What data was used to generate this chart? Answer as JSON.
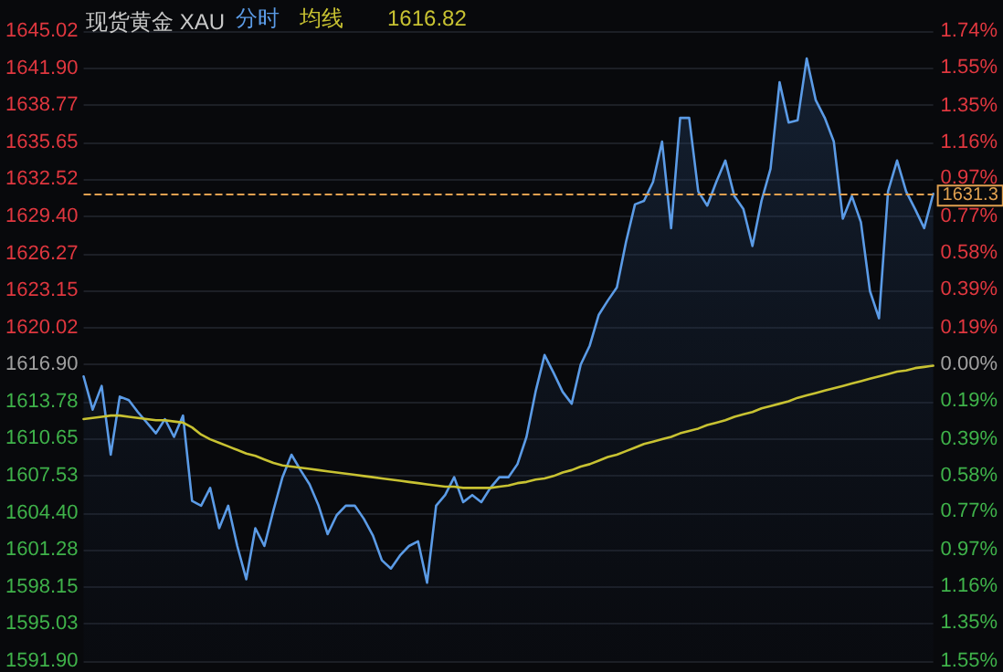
{
  "chart_data": {
    "type": "area",
    "title": "现货黄金 XAU",
    "annotations": [
      "1616.82"
    ],
    "categories": [
      null,
      null,
      null,
      null,
      null,
      null,
      null,
      null,
      null,
      null,
      null,
      null,
      null,
      null,
      null,
      null,
      null,
      null,
      null,
      null,
      null,
      null,
      null,
      null,
      null,
      null,
      null,
      null,
      null,
      null,
      null,
      null,
      null,
      null,
      null,
      null,
      null,
      null,
      null,
      null,
      null,
      null,
      null,
      null,
      null,
      null,
      null,
      null,
      null,
      null,
      null,
      null,
      null,
      null,
      null,
      null,
      null,
      null,
      null,
      null,
      null,
      null,
      null,
      null,
      null,
      null,
      null,
      null,
      null,
      null,
      null,
      null,
      null,
      null,
      null,
      null,
      null,
      null,
      null,
      null,
      null,
      null,
      null,
      null,
      null,
      null,
      null,
      null,
      null,
      null,
      null,
      null,
      null,
      null,
      null
    ],
    "series": [
      {
        "name": "分时",
        "color": "#5b9be6",
        "values": [
          1615.9,
          1613.1,
          1615.1,
          1609.3,
          1614.2,
          1613.9,
          1612.9,
          1612.0,
          1611.1,
          1612.3,
          1610.8,
          1612.6,
          1605.4,
          1605.0,
          1606.5,
          1603.1,
          1605.0,
          1601.6,
          1598.8,
          1603.1,
          1601.6,
          1604.6,
          1607.4,
          1609.3,
          1608.0,
          1606.8,
          1605.0,
          1602.6,
          1604.2,
          1605.0,
          1605.0,
          1603.9,
          1602.5,
          1600.4,
          1599.7,
          1600.8,
          1601.6,
          1602.0,
          1598.5,
          1605.0,
          1605.9,
          1607.4,
          1605.3,
          1605.9,
          1605.3,
          1606.5,
          1607.4,
          1607.4,
          1608.5,
          1610.8,
          1614.6,
          1617.7,
          1616.2,
          1614.6,
          1613.6,
          1616.9,
          1618.5,
          1621.1,
          1622.3,
          1623.4,
          1627.2,
          1630.4,
          1630.7,
          1632.3,
          1635.7,
          1628.4,
          1637.7,
          1637.7,
          1631.5,
          1630.3,
          1632.3,
          1634.1,
          1631.1,
          1630.0,
          1626.9,
          1630.7,
          1633.4,
          1640.7,
          1637.3,
          1637.5,
          1642.7,
          1639.2,
          1637.7,
          1635.7,
          1629.2,
          1631.1,
          1628.9,
          1623.1,
          1620.8,
          1631.5,
          1634.1,
          1631.5,
          1630.0,
          1628.4,
          1631.3
        ]
      },
      {
        "name": "均线",
        "type": "line",
        "color": "#c8c232",
        "values": [
          1612.3,
          1612.4,
          1612.5,
          1612.6,
          1612.6,
          1612.5,
          1612.4,
          1612.3,
          1612.2,
          1612.2,
          1612.1,
          1612.0,
          1611.6,
          1611.0,
          1610.6,
          1610.3,
          1610.0,
          1609.7,
          1609.4,
          1609.2,
          1608.9,
          1608.6,
          1608.4,
          1608.3,
          1608.2,
          1608.1,
          1608.0,
          1607.9,
          1607.8,
          1607.7,
          1607.6,
          1607.5,
          1607.4,
          1607.3,
          1607.2,
          1607.1,
          1607.0,
          1606.9,
          1606.8,
          1606.7,
          1606.6,
          1606.6,
          1606.5,
          1606.5,
          1606.5,
          1606.5,
          1606.6,
          1606.7,
          1606.9,
          1607.0,
          1607.2,
          1607.3,
          1607.5,
          1607.8,
          1608.0,
          1608.3,
          1608.5,
          1608.8,
          1609.1,
          1609.3,
          1609.6,
          1609.9,
          1610.2,
          1610.4,
          1610.6,
          1610.8,
          1611.1,
          1611.3,
          1611.5,
          1611.8,
          1612.0,
          1612.2,
          1612.5,
          1612.7,
          1612.9,
          1613.2,
          1613.4,
          1613.6,
          1613.8,
          1614.1,
          1614.3,
          1614.5,
          1614.7,
          1614.9,
          1615.1,
          1615.3,
          1615.5,
          1615.7,
          1615.9,
          1616.1,
          1616.3,
          1616.4,
          1616.6,
          1616.7,
          1616.8
        ]
      }
    ],
    "ylim": [
      1591.9,
      1645.02
    ],
    "yticks": [
      {
        "value": 1645.02,
        "label": "1645.02"
      },
      {
        "value": 1641.9,
        "label": "1641.90"
      },
      {
        "value": 1638.77,
        "label": "1638.77"
      },
      {
        "value": 1635.65,
        "label": "1635.65"
      },
      {
        "value": 1632.52,
        "label": "1632.52"
      },
      {
        "value": 1629.4,
        "label": "1629.40"
      },
      {
        "value": 1626.27,
        "label": "1626.27"
      },
      {
        "value": 1623.15,
        "label": "1623.15"
      },
      {
        "value": 1620.02,
        "label": "1620.02"
      },
      {
        "value": 1616.9,
        "label": "1616.90"
      },
      {
        "value": 1613.78,
        "label": "1613.78"
      },
      {
        "value": 1610.65,
        "label": "1610.65"
      },
      {
        "value": 1607.53,
        "label": "1607.53"
      },
      {
        "value": 1604.4,
        "label": "1604.40"
      },
      {
        "value": 1601.28,
        "label": "1601.28"
      },
      {
        "value": 1598.15,
        "label": "1598.15"
      },
      {
        "value": 1595.03,
        "label": "1595.03"
      },
      {
        "value": 1591.9,
        "label": "1591.90"
      }
    ],
    "y2lim": [
      -1.55,
      1.74
    ],
    "y2ticks": [
      {
        "value": 1.74,
        "label": "1.74%"
      },
      {
        "value": 1.55,
        "label": "1.55%"
      },
      {
        "value": 1.35,
        "label": "1.35%"
      },
      {
        "value": 1.16,
        "label": "1.16%"
      },
      {
        "value": 0.97,
        "label": "0.97%"
      },
      {
        "value": 0.77,
        "label": "0.77%"
      },
      {
        "value": 0.58,
        "label": "0.58%"
      },
      {
        "value": 0.39,
        "label": "0.39%"
      },
      {
        "value": 0.19,
        "label": "0.19%"
      },
      {
        "value": 0,
        "label": "0.00%"
      },
      {
        "value": -0.19,
        "label": "0.19%"
      },
      {
        "value": -0.39,
        "label": "0.39%"
      },
      {
        "value": -0.58,
        "label": "0.58%"
      },
      {
        "value": -0.77,
        "label": "0.77%"
      },
      {
        "value": -0.97,
        "label": "0.97%"
      },
      {
        "value": -1.16,
        "label": "1.16%"
      },
      {
        "value": -1.35,
        "label": "1.35%"
      },
      {
        "value": -1.55,
        "label": "1.55%"
      }
    ],
    "ref_lines": [
      {
        "axis": "y",
        "value": 1631.3,
        "label": "1631.3",
        "color": "#e0a050",
        "line_style": "dashed"
      }
    ],
    "grid": "y",
    "legend": "top",
    "tick_labels": "y",
    "line_style": "solid"
  }
}
